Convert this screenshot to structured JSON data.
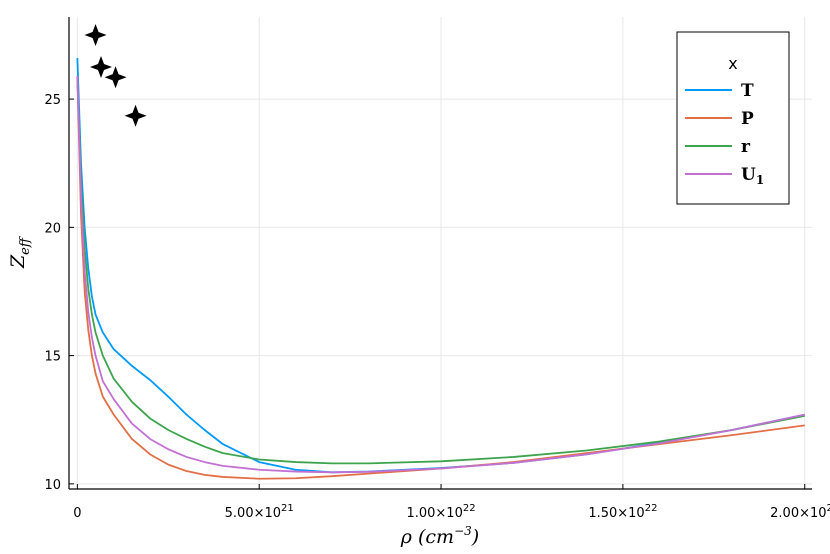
{
  "chart_data": {
    "type": "line",
    "title": "",
    "xlabel": "ρ (cm",
    "xlabel_exp": "−3",
    "xlabel_close": ")",
    "ylabel_main": "Z",
    "ylabel_sub": "eff",
    "xlim": [
      -2.3e+20,
      2.02e+22
    ],
    "ylim": [
      9.8,
      28.2
    ],
    "grid": true,
    "legend": {
      "title": "x",
      "placement": "top-right"
    },
    "x_ticks": [
      {
        "value": 0,
        "label": "0",
        "exp": ""
      },
      {
        "value": 5e+21,
        "label": "5.00×10",
        "exp": "21"
      },
      {
        "value": 1e+22,
        "label": "1.00×10",
        "exp": "22"
      },
      {
        "value": 1.5e+22,
        "label": "1.50×10",
        "exp": "22"
      },
      {
        "value": 2e+22,
        "label": "2.00×10",
        "exp": "22"
      }
    ],
    "y_ticks": [
      {
        "value": 10,
        "label": "10"
      },
      {
        "value": 15,
        "label": "15"
      },
      {
        "value": 20,
        "label": "20"
      },
      {
        "value": 25,
        "label": "25"
      }
    ],
    "series": [
      {
        "name": "T",
        "color": "#009af9",
        "x": [
          0,
          1e+20,
          2e+20,
          3e+20,
          4e+20,
          5e+20,
          7e+20,
          1e+21,
          1.5e+21,
          2e+21,
          2.5e+21,
          3e+21,
          3.5e+21,
          4e+21,
          5e+21,
          6e+21,
          7e+21,
          8e+21,
          1e+22,
          1.2e+22,
          1.4e+22,
          1.6e+22,
          1.8e+22,
          2e+22
        ],
        "y": [
          26.6,
          22.5,
          20.0,
          18.4,
          17.3,
          16.6,
          15.9,
          15.25,
          14.6,
          14.05,
          13.4,
          12.7,
          12.1,
          11.55,
          10.85,
          10.55,
          10.45,
          10.48,
          10.62,
          10.82,
          11.15,
          11.6,
          12.1,
          12.7
        ]
      },
      {
        "name": "P",
        "color": "#e26f46",
        "x": [
          0,
          1e+20,
          2e+20,
          3e+20,
          4e+20,
          5e+20,
          7e+20,
          1e+21,
          1.5e+21,
          2e+21,
          2.5e+21,
          3e+21,
          3.5e+21,
          4e+21,
          5e+21,
          6e+21,
          7e+21,
          8e+21,
          1e+22,
          1.2e+22,
          1.4e+22,
          1.6e+22,
          1.8e+22,
          2e+22
        ],
        "y": [
          25.8,
          20.5,
          17.5,
          16.0,
          15.0,
          14.3,
          13.4,
          12.7,
          11.75,
          11.15,
          10.75,
          10.5,
          10.35,
          10.27,
          10.2,
          10.22,
          10.3,
          10.4,
          10.6,
          10.85,
          11.2,
          11.55,
          11.9,
          12.28
        ]
      },
      {
        "name": "r",
        "color": "#3da44d",
        "x": [
          0,
          1e+20,
          2e+20,
          3e+20,
          4e+20,
          5e+20,
          7e+20,
          1e+21,
          1.5e+21,
          2e+21,
          2.5e+21,
          3e+21,
          3.5e+21,
          4e+21,
          5e+21,
          6e+21,
          7e+21,
          8e+21,
          1e+22,
          1.2e+22,
          1.4e+22,
          1.6e+22,
          1.8e+22,
          2e+22
        ],
        "y": [
          25.9,
          21.8,
          19.2,
          17.6,
          16.6,
          15.9,
          15.0,
          14.1,
          13.2,
          12.55,
          12.1,
          11.75,
          11.45,
          11.2,
          10.95,
          10.85,
          10.8,
          10.8,
          10.88,
          11.05,
          11.3,
          11.65,
          12.1,
          12.65
        ]
      },
      {
        "name": "U",
        "name_sub": "1",
        "color": "#c271d2",
        "x": [
          0,
          1e+20,
          2e+20,
          3e+20,
          4e+20,
          5e+20,
          7e+20,
          1e+21,
          1.5e+21,
          2e+21,
          2.5e+21,
          3e+21,
          3.5e+21,
          4e+21,
          5e+21,
          6e+21,
          7e+21,
          8e+21,
          1e+22,
          1.2e+22,
          1.4e+22,
          1.6e+22,
          1.8e+22,
          2e+22
        ],
        "y": [
          25.9,
          21.2,
          18.3,
          16.7,
          15.7,
          15.0,
          14.0,
          13.3,
          12.35,
          11.75,
          11.35,
          11.05,
          10.85,
          10.7,
          10.55,
          10.48,
          10.45,
          10.47,
          10.6,
          10.82,
          11.15,
          11.58,
          12.1,
          12.7
        ]
      }
    ],
    "scatter": {
      "color": "#000000",
      "points": [
        {
          "x": 5e+20,
          "y": 27.5
        },
        {
          "x": 6.5e+20,
          "y": 26.25
        },
        {
          "x": 1.05e+21,
          "y": 25.85
        },
        {
          "x": 1.6e+21,
          "y": 24.35
        }
      ]
    }
  }
}
